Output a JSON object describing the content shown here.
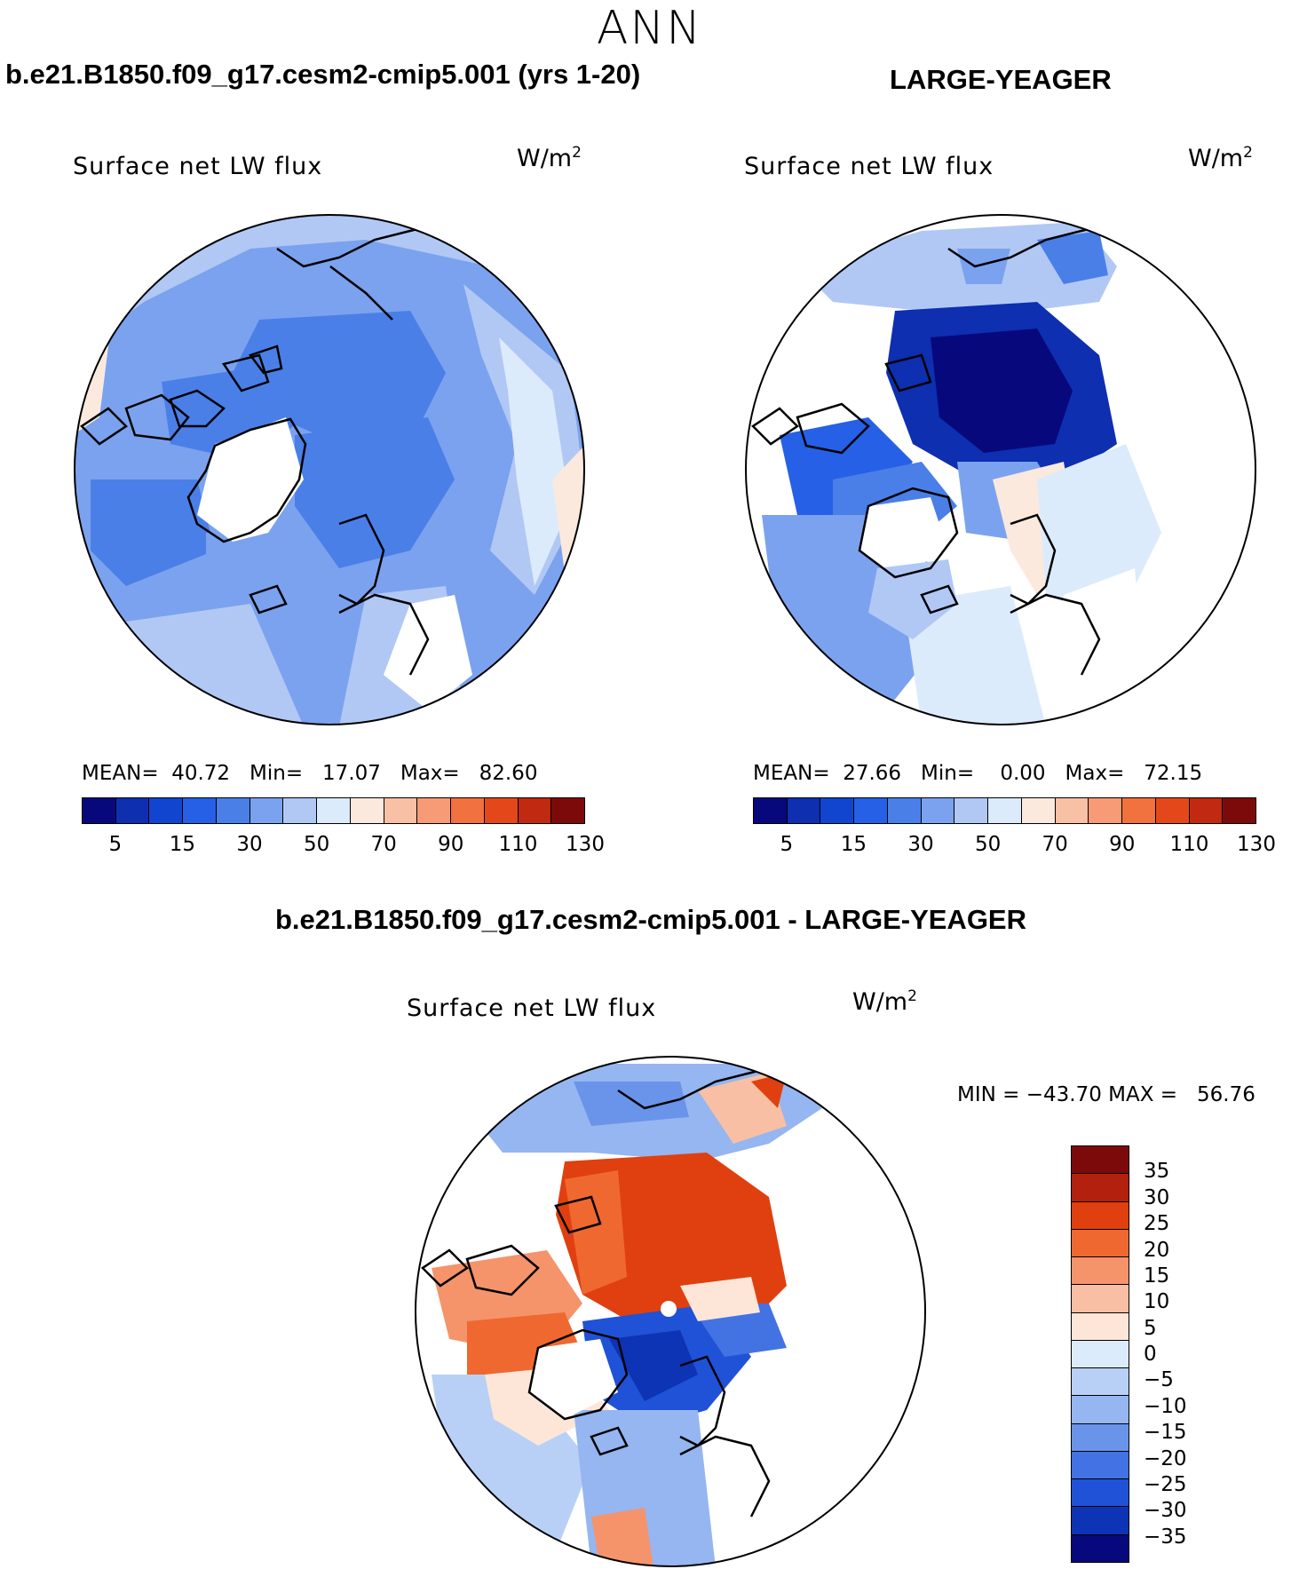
{
  "season": "ANN",
  "panels": [
    {
      "case_title": "b.e21.B1850.f09_g17.cesm2-cmip5.001 (yrs 1-20)",
      "plot_title": "Surface net LW flux",
      "units_base": "W/m",
      "units_exp": "2",
      "mean_label": "MEAN=",
      "mean": "40.72",
      "min_label": "Min=",
      "min": "17.07",
      "max_label": "Max=",
      "max": "82.60"
    },
    {
      "case_title": "LARGE-YEAGER",
      "plot_title": "Surface net LW flux",
      "units_base": "W/m",
      "units_exp": "2",
      "mean_label": "MEAN=",
      "mean": "27.66",
      "min_label": "Min=",
      "min": "0.00",
      "max_label": "Max=",
      "max": "72.15"
    }
  ],
  "diff_panel": {
    "case_title": "b.e21.B1850.f09_g17.cesm2-cmip5.001 - LARGE-YEAGER",
    "plot_title": "Surface net LW flux",
    "units_base": "W/m",
    "units_exp": "2",
    "minmax": "MIN = −43.70 MAX =   56.76"
  },
  "chart_data": [
    {
      "type": "heatmap",
      "title": "Surface net LW flux",
      "case": "b.e21.B1850.f09_g17.cesm2-cmip5.001 (yrs 1-20)",
      "projection": "north polar stereographic",
      "units": "W/m2",
      "mean": 40.72,
      "min": 17.07,
      "max": 82.6,
      "colorbar_levels": [
        5,
        10,
        15,
        20,
        30,
        40,
        50,
        60,
        70,
        80,
        90,
        100,
        110,
        120,
        130
      ],
      "colorbar_tick_labels": [
        "5",
        "15",
        "30",
        "50",
        "70",
        "90",
        "110",
        "130"
      ],
      "colors": [
        "#08087d",
        "#0d2fb0",
        "#1245cf",
        "#2560e6",
        "#4a7fe8",
        "#7ba2ee",
        "#b1c8f5",
        "#dcebfb",
        "#fbe9de",
        "#f8c1a6",
        "#f69b75",
        "#f1713f",
        "#e4481a",
        "#c12910",
        "#7d0a0a"
      ]
    },
    {
      "type": "heatmap",
      "title": "Surface net LW flux",
      "case": "LARGE-YEAGER",
      "projection": "north polar stereographic",
      "units": "W/m2",
      "mean": 27.66,
      "min": 0.0,
      "max": 72.15,
      "colorbar_levels": [
        5,
        10,
        15,
        20,
        30,
        40,
        50,
        60,
        70,
        80,
        90,
        100,
        110,
        120,
        130
      ],
      "colorbar_tick_labels": [
        "5",
        "15",
        "30",
        "50",
        "70",
        "90",
        "110",
        "130"
      ],
      "colors": [
        "#08087d",
        "#0d2fb0",
        "#1245cf",
        "#2560e6",
        "#4a7fe8",
        "#7ba2ee",
        "#b1c8f5",
        "#dcebfb",
        "#fbe9de",
        "#f8c1a6",
        "#f69b75",
        "#f1713f",
        "#e4481a",
        "#c12910",
        "#7d0a0a"
      ]
    },
    {
      "type": "heatmap",
      "title": "Surface net LW flux",
      "case": "b.e21.B1850.f09_g17.cesm2-cmip5.001 - LARGE-YEAGER",
      "projection": "north polar stereographic",
      "units": "W/m2",
      "min": -43.7,
      "max": 56.76,
      "colorbar_levels": [
        35,
        30,
        25,
        20,
        15,
        10,
        5,
        0,
        -5,
        -10,
        -15,
        -20,
        -25,
        -30,
        -35
      ],
      "colorbar_tick_labels": [
        "35",
        "30",
        "25",
        "20",
        "15",
        "10",
        "5",
        "0",
        "−5",
        "−10",
        "−15",
        "−20",
        "−25",
        "−30",
        "−35"
      ],
      "colors": [
        "#7d0a0a",
        "#b3200d",
        "#e0400f",
        "#ef6830",
        "#f5946a",
        "#f9bfa4",
        "#fde6d8",
        "#dcebfb",
        "#b9d0f6",
        "#95b6f0",
        "#6a93ea",
        "#4372e3",
        "#1f52d6",
        "#0d34b5",
        "#08087d"
      ]
    }
  ]
}
